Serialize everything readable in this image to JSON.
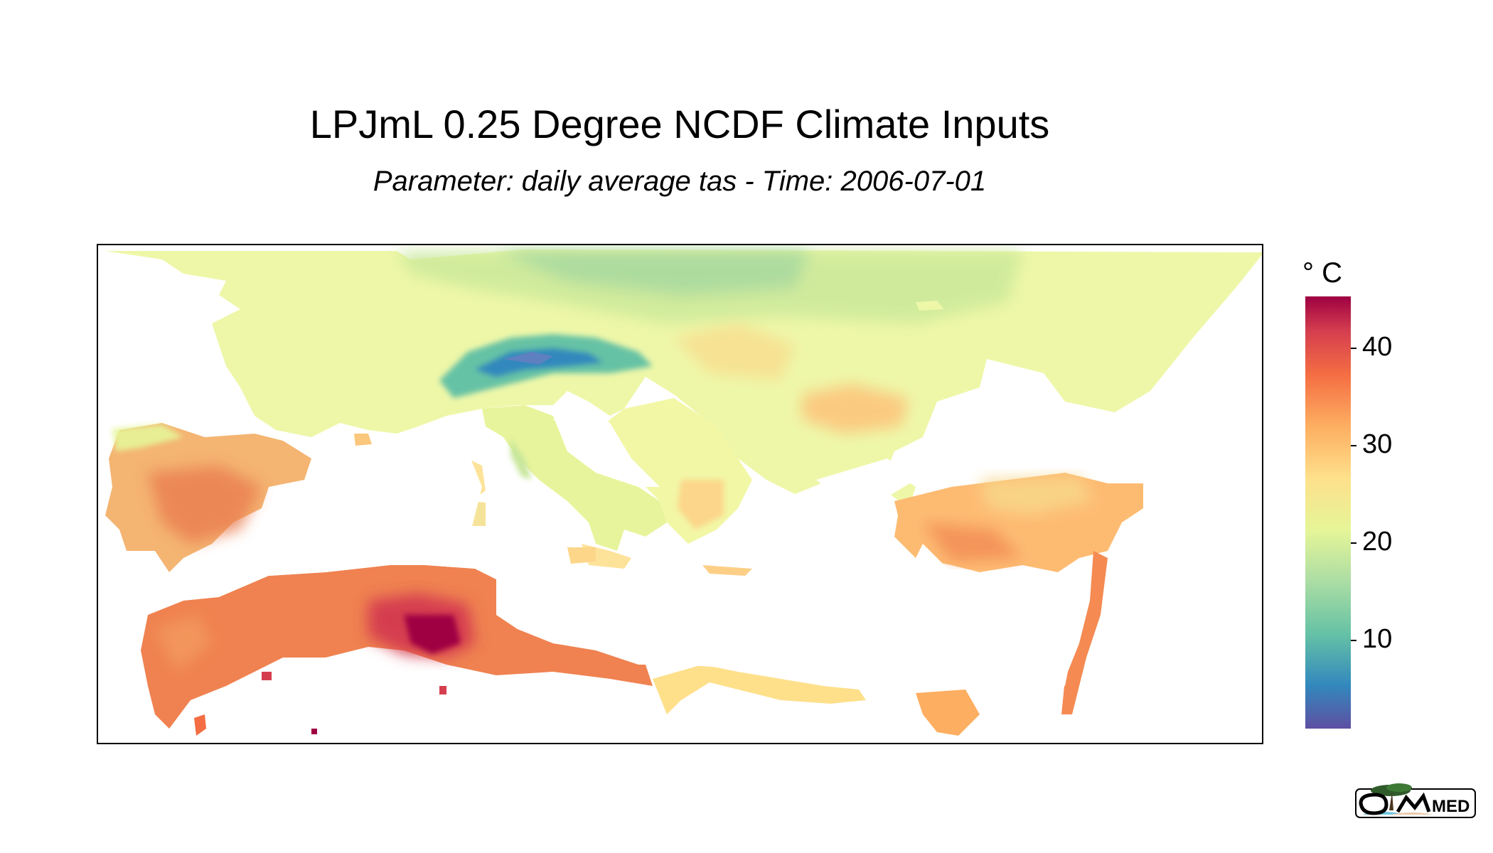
{
  "header": {
    "title": "LPJmL 0.25 Degree NCDF Climate Inputs",
    "subtitle": "Parameter: daily average tas - Time: 2006-07-01"
  },
  "legend": {
    "unit": "° C",
    "ticks": [
      "40",
      "30",
      "20",
      "10"
    ],
    "colors": [
      "#5e4fa2",
      "#3288bd",
      "#66c2a5",
      "#abdda4",
      "#e6f598",
      "#fee08b",
      "#fdae61",
      "#f46d43",
      "#d53e4f",
      "#9e0142"
    ]
  },
  "logo": {
    "text": "MED"
  }
}
